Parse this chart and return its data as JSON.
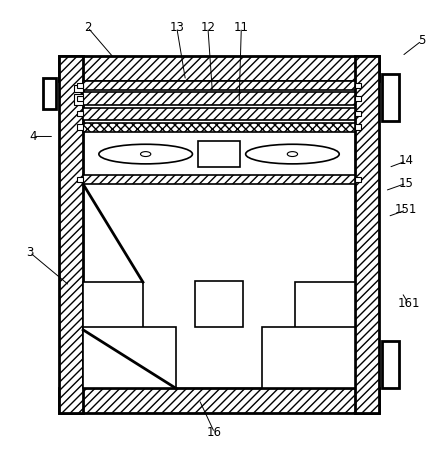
{
  "bg_color": "#ffffff",
  "line_color": "#000000",
  "figsize": [
    4.47,
    4.69
  ],
  "dpi": 100,
  "ox": 0.13,
  "oy": 0.1,
  "ow": 0.72,
  "oh": 0.8,
  "wall": 0.055
}
